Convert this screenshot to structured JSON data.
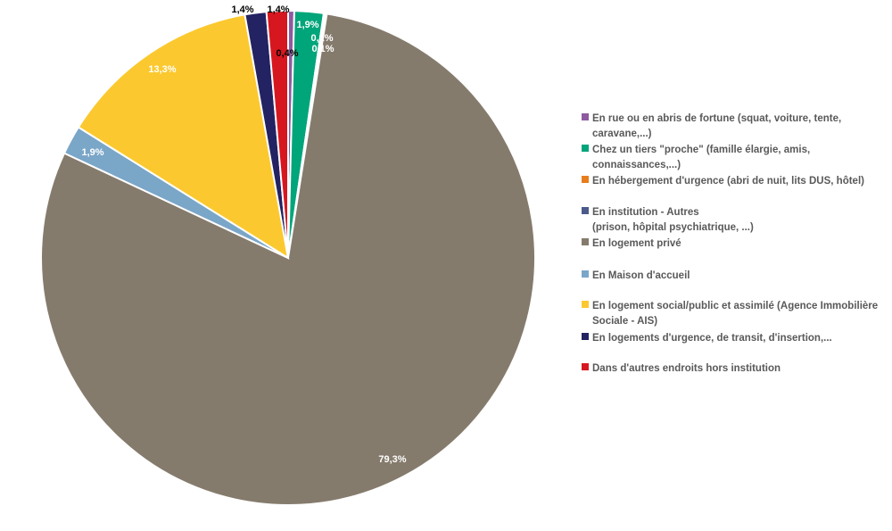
{
  "chart_data": {
    "type": "pie",
    "title": "",
    "slices": [
      {
        "label": "En rue ou en abris de fortune  (squat, voiture, tente, caravane,...)",
        "value": 0.4,
        "value_label": "0,4%",
        "color": "#8e5aa0"
      },
      {
        "label": "Chez un tiers \"proche\" (famille élargie, amis, connaissances,...)",
        "value": 1.9,
        "value_label": "1,9%",
        "color": "#00a57a"
      },
      {
        "label": "En hébergement d'urgence (abri de nuit, lits DUS, hôtel)",
        "value": 0.1,
        "value_label": "0,1%",
        "color": "#e87d1e"
      },
      {
        "label": "En institution - Autres (prison, hôpital psychiatrique, ...)",
        "value": 0.1,
        "value_label": "0,1%",
        "color": "#4a5a8a"
      },
      {
        "label": "En logement privé",
        "value": 79.3,
        "value_label": "79,3%",
        "color": "#857b6d"
      },
      {
        "label": "En Maison d'accueil",
        "value": 1.9,
        "value_label": "1,9%",
        "color": "#7aa6c8"
      },
      {
        "label": "En logement social/public et assimilé (Agence Immobilière Sociale - AIS)",
        "value": 13.3,
        "value_label": "13,3%",
        "color": "#fbc92f"
      },
      {
        "label": "En logements d'urgence, de transit, d'insertion,...",
        "value": 1.4,
        "value_label": "1,4%",
        "color": "#232262"
      },
      {
        "label": "Dans d'autres endroits hors institution",
        "value": 1.4,
        "value_label": "1,4%",
        "color": "#d7171f"
      }
    ],
    "legend": {
      "placement": "right",
      "items": [
        {
          "lines": [
            "En rue ou en abris de fortune  (squat, voiture, tente,",
            "caravane,...)"
          ],
          "color": "#8e5aa0"
        },
        {
          "lines": [
            "Chez un tiers \"proche\" (famille élargie, amis,",
            "connaissances,...)"
          ],
          "color": "#00a57a"
        },
        {
          "lines": [
            "En hébergement d'urgence (abri de nuit, lits DUS, hôtel)"
          ],
          "color": "#e87d1e"
        },
        {
          "lines": [
            "En institution - Autres",
            "(prison, hôpital psychiatrique, ...)"
          ],
          "color": "#4a5a8a"
        },
        {
          "lines": [
            "En logement privé"
          ],
          "color": "#857b6d"
        },
        {
          "lines": [
            "En Maison d'accueil"
          ],
          "color": "#7aa6c8"
        },
        {
          "lines": [
            "En logement social/public et assimilé (Agence Immobilière",
            "Sociale - AIS)"
          ],
          "color": "#fbc92f"
        },
        {
          "lines": [
            "En logements d'urgence, de transit, d'insertion,..."
          ],
          "color": "#232262"
        },
        {
          "lines": [
            "Dans d'autres endroits hors institution"
          ],
          "color": "#d7171f"
        }
      ]
    },
    "legend_text_color": "#595959"
  }
}
